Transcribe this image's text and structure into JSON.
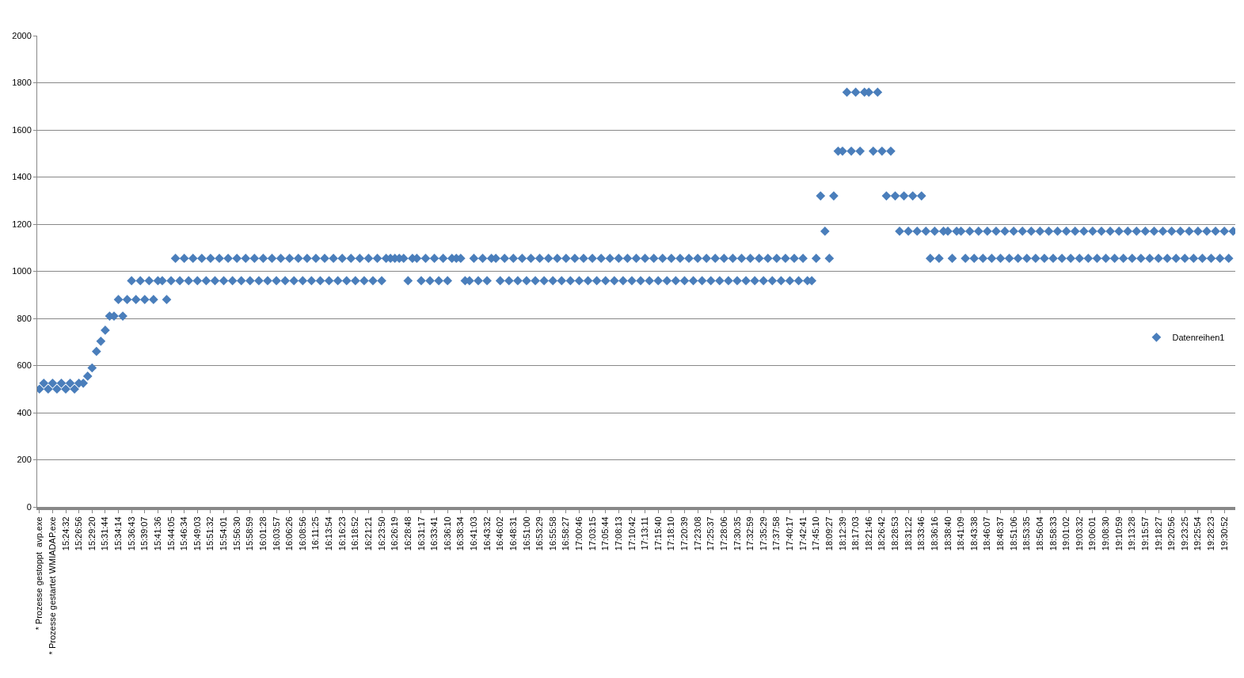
{
  "chart_data": {
    "type": "scatter",
    "categories": [
      "* Prozesse gestoppt  avp.exe",
      null,
      null,
      "* Prozesse gestartet WMIADAP.exe",
      null,
      null,
      "15:24:32",
      null,
      null,
      "15:26:56",
      null,
      null,
      "15:29:20",
      null,
      null,
      "15:31:44",
      null,
      null,
      "15:34:14",
      null,
      null,
      "15:36:43",
      null,
      null,
      "15:39:07",
      null,
      null,
      "15:41:36",
      null,
      null,
      "15:44:05",
      null,
      null,
      "15:46:34",
      null,
      null,
      "15:49:03",
      null,
      null,
      "15:51:32",
      null,
      null,
      "15:54:01",
      null,
      null,
      "15:56:30",
      null,
      null,
      "15:58:59",
      null,
      null,
      "16:01:28",
      null,
      null,
      "16:03:57",
      null,
      null,
      "16:06:26",
      null,
      null,
      "16:08:56",
      null,
      null,
      "16:11:25",
      null,
      null,
      "16:13:54",
      null,
      null,
      "16:16:23",
      null,
      null,
      "16:18:52",
      null,
      null,
      "16:21:21",
      null,
      null,
      "16:23:50",
      null,
      null,
      "16:26:19",
      null,
      null,
      "16:28:48",
      null,
      null,
      "16:31:17",
      null,
      null,
      "16:33:41",
      null,
      null,
      "16:36:10",
      null,
      null,
      "16:38:34",
      null,
      null,
      "16:41:03",
      null,
      null,
      "16:43:32",
      null,
      null,
      "16:46:02",
      null,
      null,
      "16:48:31",
      null,
      null,
      "16:51:00",
      null,
      null,
      "16:53:29",
      null,
      null,
      "16:55:58",
      null,
      null,
      "16:58:27",
      null,
      null,
      "17:00:46",
      null,
      null,
      "17:03:15",
      null,
      null,
      "17:05:44",
      null,
      null,
      "17:08:13",
      null,
      null,
      "17:10:42",
      null,
      null,
      "17:13:11",
      null,
      null,
      "17:15:40",
      null,
      null,
      "17:18:10",
      null,
      null,
      "17:20:39",
      null,
      null,
      "17:23:08",
      null,
      null,
      "17:25:37",
      null,
      null,
      "17:28:06",
      null,
      null,
      "17:30:35",
      null,
      null,
      "17:32:59",
      null,
      null,
      "17:35:29",
      null,
      null,
      "17:37:58",
      null,
      null,
      "17:40:17",
      null,
      null,
      "17:42:41",
      null,
      null,
      "17:45:10",
      null,
      null,
      "18:09:27",
      null,
      null,
      "18:12:39",
      null,
      null,
      "18:17:03",
      null,
      null,
      "18:21:46",
      null,
      null,
      "18:26:42",
      null,
      null,
      "18:28:53",
      null,
      null,
      "18:31:22",
      null,
      null,
      "18:33:46",
      null,
      null,
      "18:36:16",
      null,
      null,
      "18:38:40",
      null,
      null,
      "18:41:09",
      null,
      null,
      "18:43:38",
      null,
      null,
      "18:46:07",
      null,
      null,
      "18:48:37",
      null,
      null,
      "18:51:06",
      null,
      null,
      "18:53:35",
      null,
      null,
      "18:56:04",
      null,
      null,
      "18:58:33",
      null,
      null,
      "19:01:02",
      null,
      null,
      "19:03:32",
      null,
      null,
      "19:06:01",
      null,
      null,
      "19:08:30",
      null,
      null,
      "19:10:59",
      null,
      null,
      "19:13:28",
      null,
      null,
      "19:15:57",
      null,
      null,
      "19:18:27",
      null,
      null,
      "19:20:56",
      null,
      null,
      "19:23:25",
      null,
      null,
      "19:25:54",
      null,
      null,
      "19:28:23",
      null,
      null,
      "19:30:52",
      null,
      null
    ],
    "series": [
      {
        "name": "Datenreihen1",
        "color": "#4a7ebb",
        "values": [
          500,
          525,
          500,
          525,
          500,
          525,
          500,
          525,
          500,
          525,
          525,
          555,
          590,
          660,
          703,
          750,
          810,
          810,
          880,
          810,
          880,
          960,
          880,
          960,
          880,
          960,
          880,
          960,
          960,
          880,
          960,
          1055,
          960,
          1055,
          960,
          1055,
          960,
          1055,
          960,
          1055,
          960,
          1055,
          960,
          1055,
          960,
          1055,
          960,
          1055,
          960,
          1055,
          960,
          1055,
          960,
          1055,
          960,
          1055,
          960,
          1055,
          960,
          1055,
          960,
          1055,
          960,
          1055,
          960,
          1055,
          960,
          1055,
          960,
          1055,
          960,
          1055,
          960,
          1055,
          960,
          1055,
          960,
          1055,
          960,
          1055,
          1055,
          1055,
          1055,
          1055,
          960,
          1055,
          1055,
          960,
          1055,
          960,
          1055,
          960,
          1055,
          960,
          1055,
          1055,
          1055,
          960,
          960,
          1055,
          960,
          1055,
          960,
          1055,
          1055,
          960,
          1055,
          960,
          1055,
          960,
          1055,
          960,
          1055,
          960,
          1055,
          960,
          1055,
          960,
          1055,
          960,
          1055,
          960,
          1055,
          960,
          1055,
          960,
          1055,
          960,
          1055,
          960,
          1055,
          960,
          1055,
          960,
          1055,
          960,
          1055,
          960,
          1055,
          960,
          1055,
          960,
          1055,
          960,
          1055,
          960,
          1055,
          960,
          1055,
          960,
          1055,
          960,
          1055,
          960,
          1055,
          960,
          1055,
          960,
          1055,
          960,
          1055,
          960,
          1055,
          960,
          1055,
          960,
          1055,
          960,
          1055,
          960,
          1055,
          960,
          1055,
          960,
          1055,
          960,
          960,
          1055,
          1320,
          1170,
          1055,
          1320,
          1510,
          1510,
          1760,
          1510,
          1760,
          1510,
          1760,
          1760,
          1510,
          1760,
          1510,
          1320,
          1510,
          1320,
          1170,
          1320,
          1170,
          1320,
          1170,
          1320,
          1170,
          1055,
          1170,
          1055,
          1170,
          1170,
          1055,
          1170,
          1170,
          1055,
          1170,
          1055,
          1170,
          1055,
          1170,
          1055,
          1170,
          1055,
          1170,
          1055,
          1170,
          1055,
          1170,
          1055,
          1170,
          1055,
          1170,
          1055,
          1170,
          1055,
          1170,
          1055,
          1170,
          1055,
          1170,
          1055,
          1170,
          1055,
          1170,
          1055,
          1170,
          1055,
          1170,
          1055,
          1170,
          1055,
          1170,
          1055,
          1170,
          1055,
          1170,
          1055,
          1170,
          1055,
          1170,
          1055,
          1170,
          1055,
          1170,
          1055,
          1170,
          1055,
          1170,
          1055,
          1170,
          1055,
          1170,
          1055,
          1170,
          1055,
          1170
        ]
      }
    ],
    "ylim": [
      0,
      2000
    ],
    "yticks": [
      0,
      200,
      400,
      600,
      800,
      1000,
      1200,
      1400,
      1600,
      1800,
      2000
    ],
    "grid": "y",
    "legend": "right",
    "marker": "diamond"
  }
}
